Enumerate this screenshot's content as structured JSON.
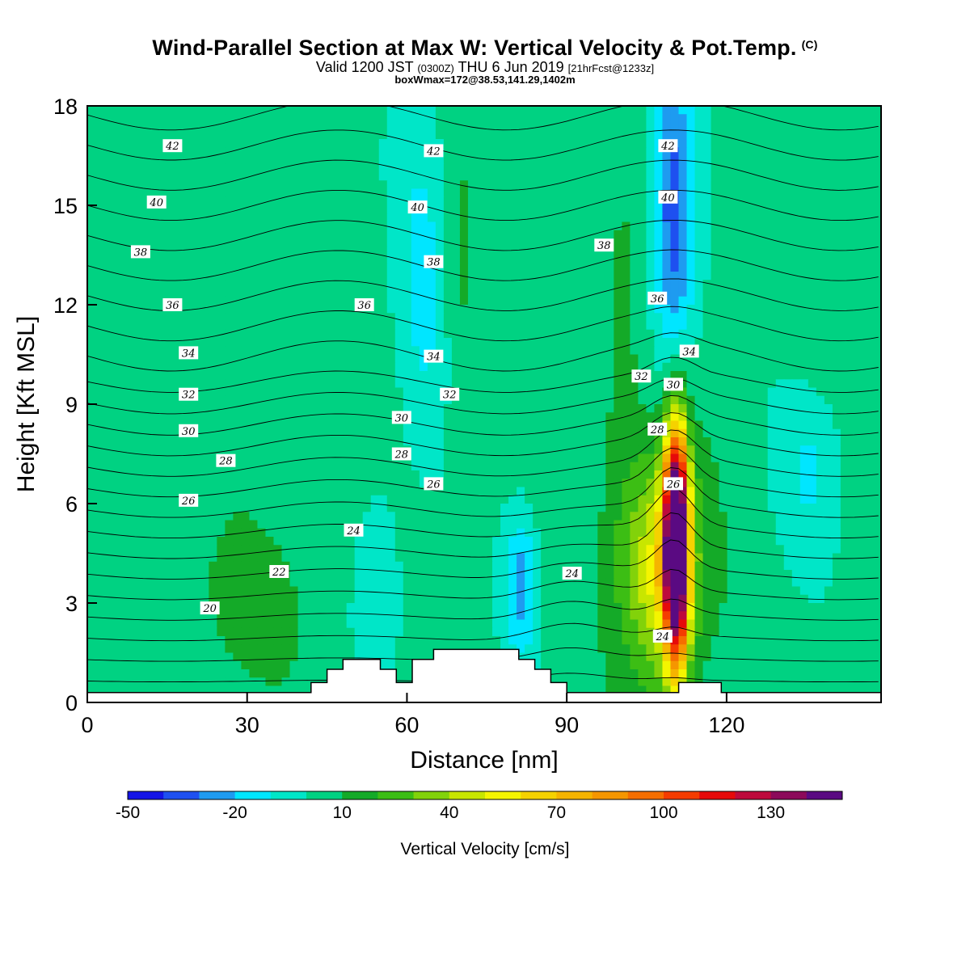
{
  "title": {
    "main": "Wind-Parallel Section at Max W: Vertical Velocity & Pot.Temp.",
    "copyright": "(C)",
    "valid_prefix": "Valid 1200 JST",
    "valid_utc": "(0300Z)",
    "valid_date": "THU 6 Jun 2019",
    "forecast": "[21hrFcst@1233z]",
    "boxmax": "boxWmax=172@38.53,141.29,1402m"
  },
  "chart_data": {
    "type": "heatmap",
    "xlabel": "Distance [nm]",
    "ylabel": "Height [Kft MSL]",
    "xlim": [
      0,
      149
    ],
    "ylim": [
      0,
      18
    ],
    "xticks": [
      "0",
      "30",
      "60",
      "90",
      "120"
    ],
    "yticks": [
      "0",
      "3",
      "6",
      "9",
      "12",
      "15",
      "18"
    ],
    "colorbar": {
      "title": "Vertical Velocity [cm/s]",
      "levels": [
        -50,
        -40,
        -30,
        -20,
        -10,
        0,
        10,
        20,
        30,
        40,
        50,
        60,
        70,
        80,
        90,
        100,
        110,
        120,
        130,
        140,
        150
      ],
      "colors": [
        "#1414e6",
        "#1e50f0",
        "#1e9bf0",
        "#00e6ff",
        "#00e6c8",
        "#00d282",
        "#14aa28",
        "#3cbe14",
        "#82d20a",
        "#c8e600",
        "#f5f500",
        "#f5d200",
        "#f5b400",
        "#f59600",
        "#f56e00",
        "#f53c00",
        "#e60a0a",
        "#be0a3c",
        "#8c0a5a",
        "#5a0a82"
      ],
      "tick_labels": [
        {
          "value": -50,
          "label": "-50"
        },
        {
          "value": -20,
          "label": "-20"
        },
        {
          "value": 10,
          "label": "10"
        },
        {
          "value": 40,
          "label": "40"
        },
        {
          "value": 70,
          "label": "70"
        },
        {
          "value": 100,
          "label": "100"
        },
        {
          "value": 130,
          "label": "130"
        }
      ]
    },
    "theta_contours": {
      "levels": [
        18,
        19,
        20,
        21,
        22,
        23,
        24,
        25,
        26,
        27,
        28,
        29,
        30,
        31,
        32,
        33,
        34,
        35,
        36,
        37,
        38,
        39,
        40,
        41,
        42,
        43,
        44,
        45
      ],
      "labels": [
        {
          "text": "42",
          "x": 16,
          "y": 16.8
        },
        {
          "text": "42",
          "x": 65,
          "y": 16.65
        },
        {
          "text": "42",
          "x": 109,
          "y": 16.8
        },
        {
          "text": "40",
          "x": 13,
          "y": 15.1
        },
        {
          "text": "40",
          "x": 62,
          "y": 14.95
        },
        {
          "text": "40",
          "x": 109,
          "y": 15.25
        },
        {
          "text": "38",
          "x": 10,
          "y": 13.6
        },
        {
          "text": "38",
          "x": 65,
          "y": 13.3
        },
        {
          "text": "38",
          "x": 97,
          "y": 13.8
        },
        {
          "text": "36",
          "x": 16,
          "y": 12.0
        },
        {
          "text": "36",
          "x": 52,
          "y": 12.0
        },
        {
          "text": "36",
          "x": 107,
          "y": 12.2
        },
        {
          "text": "34",
          "x": 19,
          "y": 10.55
        },
        {
          "text": "34",
          "x": 65,
          "y": 10.45
        },
        {
          "text": "34",
          "x": 113,
          "y": 10.6
        },
        {
          "text": "32",
          "x": 19,
          "y": 9.3
        },
        {
          "text": "32",
          "x": 68,
          "y": 9.3
        },
        {
          "text": "32",
          "x": 104,
          "y": 9.85
        },
        {
          "text": "30",
          "x": 19,
          "y": 8.2
        },
        {
          "text": "30",
          "x": 59,
          "y": 8.6
        },
        {
          "text": "30",
          "x": 110,
          "y": 9.6
        },
        {
          "text": "28",
          "x": 26,
          "y": 7.3
        },
        {
          "text": "28",
          "x": 59,
          "y": 7.5
        },
        {
          "text": "28",
          "x": 107,
          "y": 8.25
        },
        {
          "text": "26",
          "x": 19,
          "y": 6.1
        },
        {
          "text": "26",
          "x": 65,
          "y": 6.6
        },
        {
          "text": "26",
          "x": 110,
          "y": 6.6
        },
        {
          "text": "24",
          "x": 50,
          "y": 5.2
        },
        {
          "text": "24",
          "x": 91,
          "y": 3.9
        },
        {
          "text": "24",
          "x": 108,
          "y": 2.0
        },
        {
          "text": "22",
          "x": 36,
          "y": 3.95
        },
        {
          "text": "20",
          "x": 23,
          "y": 2.85
        }
      ]
    },
    "terrain": [
      [
        0,
        0.3
      ],
      [
        30,
        0.3
      ],
      [
        42,
        0.3
      ],
      [
        42,
        0.6
      ],
      [
        45,
        0.6
      ],
      [
        45,
        1.0
      ],
      [
        48,
        1.0
      ],
      [
        48,
        1.3
      ],
      [
        55,
        1.3
      ],
      [
        55,
        1.0
      ],
      [
        58,
        1.0
      ],
      [
        58,
        0.6
      ],
      [
        61,
        0.6
      ],
      [
        61,
        1.3
      ],
      [
        65,
        1.3
      ],
      [
        65,
        1.6
      ],
      [
        81,
        1.6
      ],
      [
        81,
        1.3
      ],
      [
        84,
        1.3
      ],
      [
        84,
        1.0
      ],
      [
        87,
        1.0
      ],
      [
        87,
        0.6
      ],
      [
        90,
        0.6
      ],
      [
        90,
        0.3
      ],
      [
        111,
        0.3
      ],
      [
        111,
        0.6
      ],
      [
        119,
        0.6
      ],
      [
        119,
        0.3
      ],
      [
        149,
        0.3
      ]
    ],
    "w_features": [
      {
        "kind": "updraft",
        "x": 110.5,
        "y": 4.8,
        "rx": 2.2,
        "ry": 3.5,
        "peak": 172
      },
      {
        "kind": "updraft",
        "x": 108.0,
        "y": 4.0,
        "rx": 7.0,
        "ry": 3.5,
        "peak": 55
      },
      {
        "kind": "downdraft",
        "x": 110.0,
        "y": 14.5,
        "rx": 4.0,
        "ry": 5.0,
        "peak": -40
      },
      {
        "kind": "downdraft",
        "x": 81.5,
        "y": 3.5,
        "rx": 3.0,
        "ry": 2.2,
        "peak": -28
      },
      {
        "kind": "downdraft",
        "x": 63.0,
        "y": 13.0,
        "rx": 5.0,
        "ry": 6.0,
        "peak": -15
      },
      {
        "kind": "downdraft",
        "x": 55.0,
        "y": 3.5,
        "rx": 4.0,
        "ry": 3.0,
        "peak": -14
      }
    ]
  }
}
